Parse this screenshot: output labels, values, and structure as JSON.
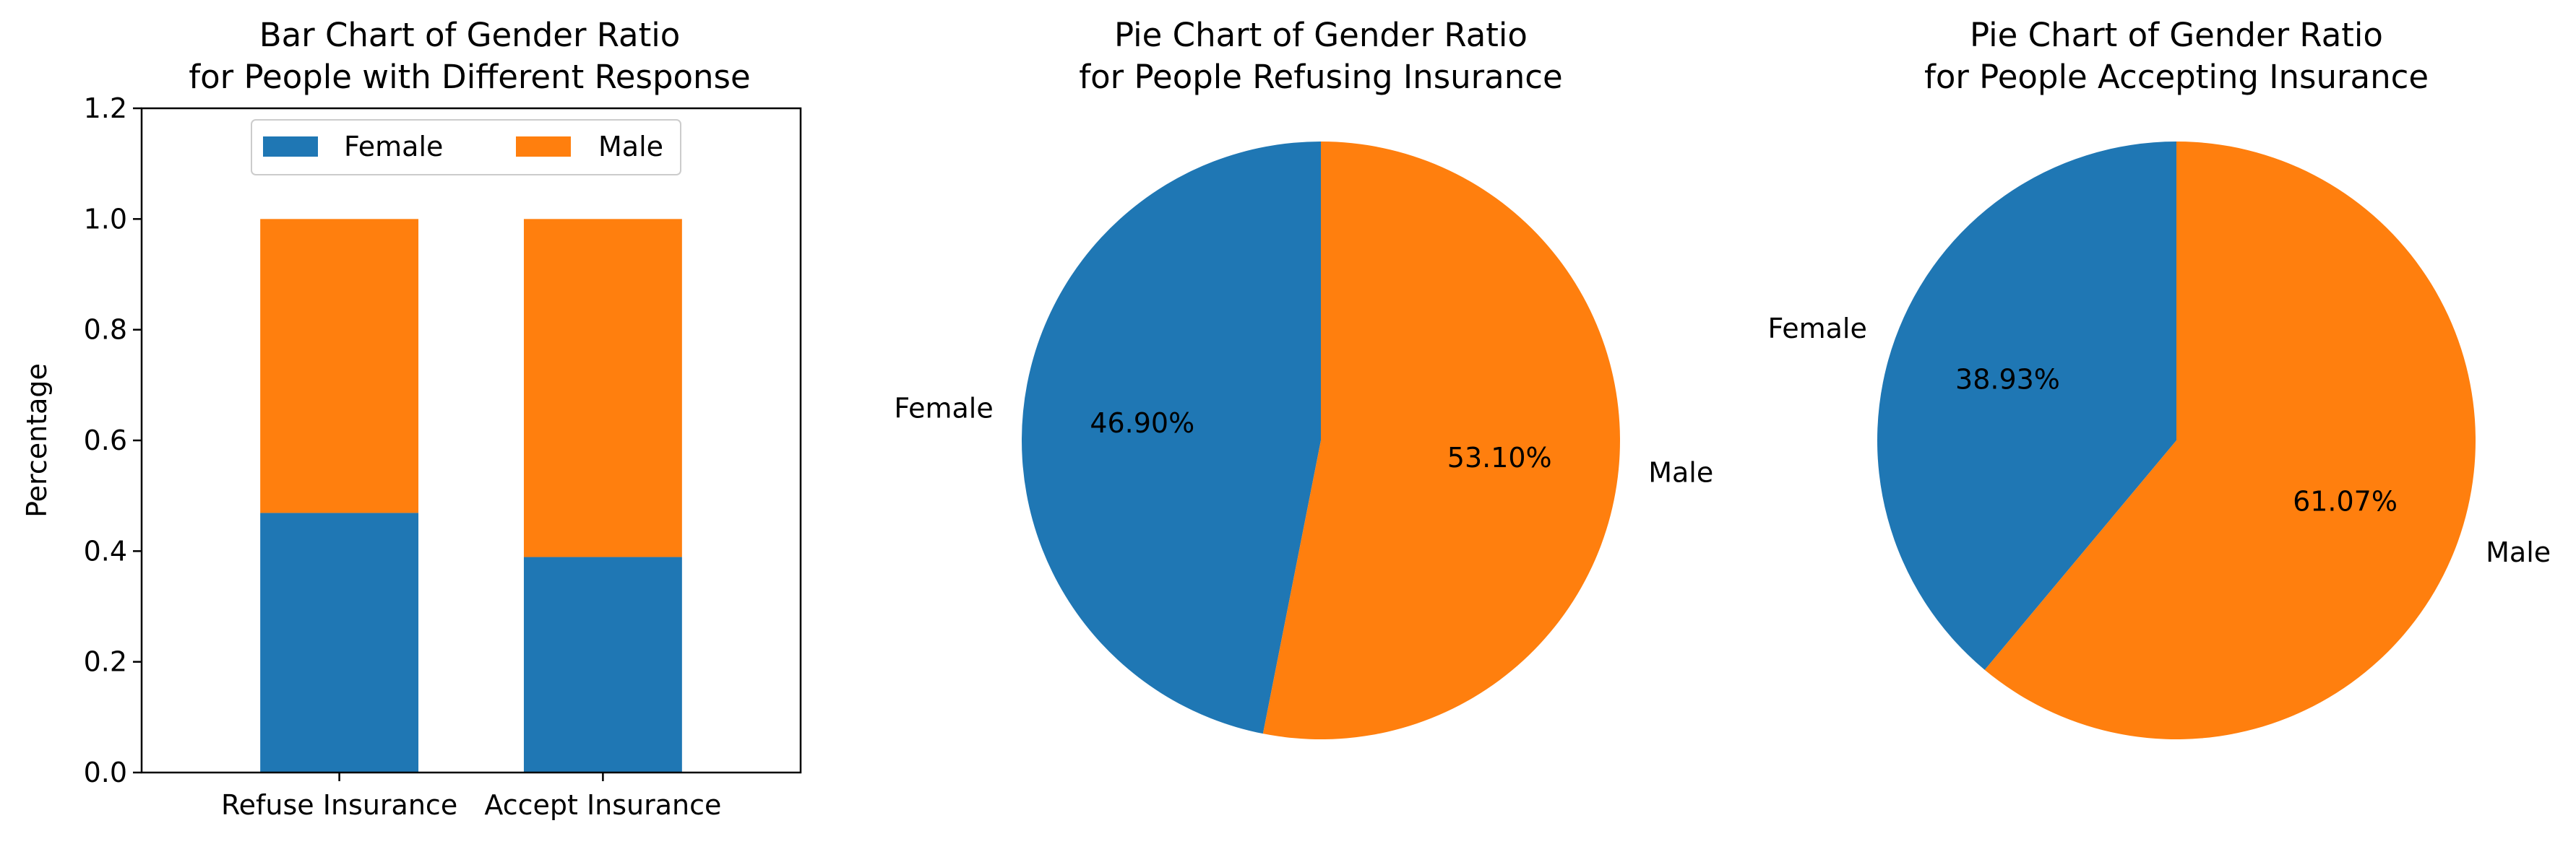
{
  "colors": {
    "female": "#1f77b4",
    "male": "#ff7f0e"
  },
  "chart_data": [
    {
      "type": "bar",
      "stacked": true,
      "title": [
        "Bar Chart of Gender Ratio",
        "for People with Different Response"
      ],
      "xlabel": "",
      "ylabel": "Percentage",
      "categories": [
        "Refuse Insurance",
        "Accept Insurance"
      ],
      "series": [
        {
          "name": "Female",
          "values": [
            0.469,
            0.3893
          ]
        },
        {
          "name": "Male",
          "values": [
            0.531,
            0.6107
          ]
        }
      ],
      "ylim": [
        0,
        1.2
      ],
      "yticks": [
        "0.0",
        "0.2",
        "0.4",
        "0.6",
        "0.8",
        "1.0",
        "1.2"
      ],
      "grid": false,
      "legend": "upper center"
    },
    {
      "type": "pie",
      "title": [
        "Pie Chart of Gender Ratio",
        "for People Refusing Insurance"
      ],
      "labels": [
        "Female",
        "Male"
      ],
      "values": [
        46.9,
        53.1
      ],
      "percent_labels": [
        "46.90%",
        "53.10%"
      ],
      "start_angle": 90,
      "direction": "counterclockwise"
    },
    {
      "type": "pie",
      "title": [
        "Pie Chart of Gender Ratio",
        "for People Accepting Insurance"
      ],
      "labels": [
        "Female",
        "Male"
      ],
      "values": [
        38.93,
        61.07
      ],
      "percent_labels": [
        "38.93%",
        "61.07%"
      ],
      "start_angle": 90,
      "direction": "counterclockwise"
    }
  ]
}
